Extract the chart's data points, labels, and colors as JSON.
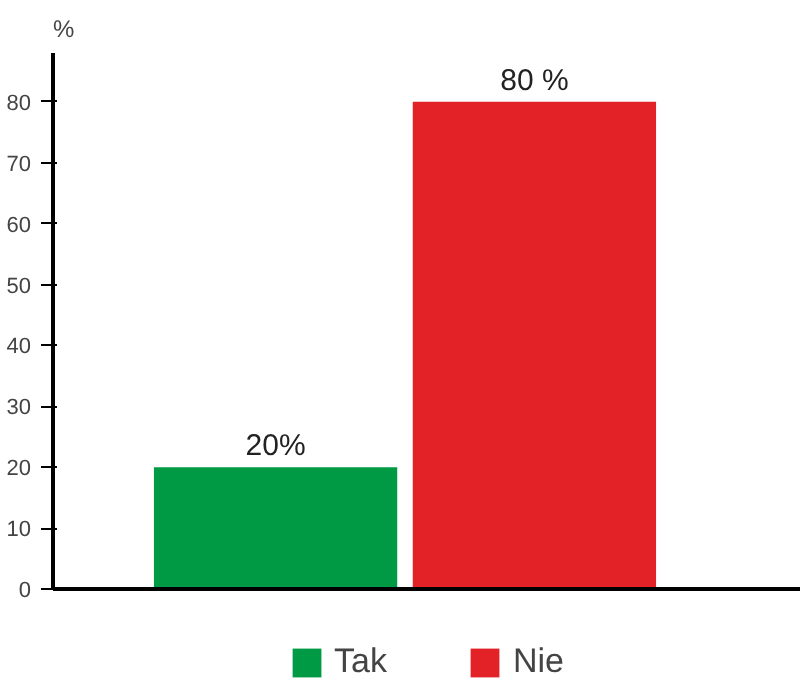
{
  "chart_data": {
    "type": "bar",
    "ylabel": "%",
    "categories": [
      null,
      null
    ],
    "series": [
      {
        "name": "Tak",
        "color": "#009a44",
        "values": [
          20,
          null
        ],
        "value_labels": [
          "20%",
          null
        ]
      },
      {
        "name": "Nie",
        "color": "#e32227",
        "values": [
          null,
          80
        ],
        "value_labels": [
          null,
          "80 %"
        ]
      }
    ],
    "ylim": [
      0,
      88
    ],
    "yticks": [
      0,
      10,
      20,
      30,
      40,
      50,
      60,
      70,
      80
    ],
    "grid": false,
    "legend": "bottom",
    "tick_labels": "y"
  }
}
